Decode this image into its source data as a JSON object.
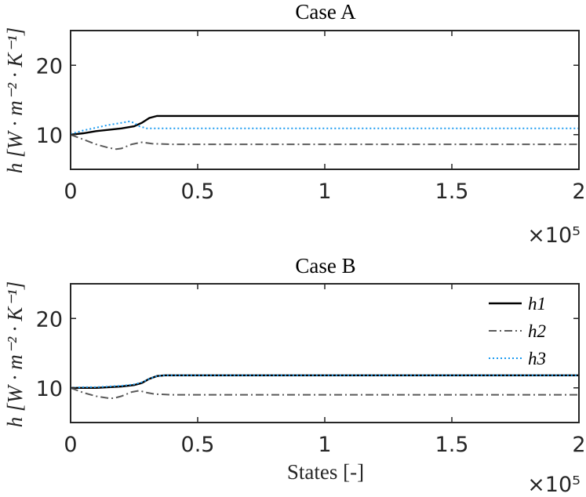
{
  "chart_data": [
    {
      "type": "line",
      "title": "Case A",
      "xlabel": "",
      "ylabel": "h [W · m⁻² · K⁻¹]",
      "xlim": [
        0,
        200000
      ],
      "ylim": [
        5,
        25
      ],
      "xticks": [
        0,
        50000,
        100000,
        150000,
        200000
      ],
      "xtick_labels": [
        "0",
        "0.5",
        "1",
        "1.5",
        "2"
      ],
      "yticks": [
        10,
        20
      ],
      "ytick_labels": [
        "10",
        "20"
      ],
      "x_exponent_label": "×10⁵",
      "grid": false,
      "series": [
        {
          "name": "h1",
          "color": "#000000",
          "style": "solid",
          "x": [
            0,
            5000,
            10000,
            15000,
            20000,
            25000,
            28000,
            31000,
            34000,
            40000,
            60000,
            100000,
            150000,
            200000
          ],
          "y": [
            10.0,
            10.2,
            10.5,
            10.7,
            10.9,
            11.2,
            11.7,
            12.4,
            12.7,
            12.7,
            12.7,
            12.7,
            12.7,
            12.7
          ]
        },
        {
          "name": "h2",
          "color": "#5a5a5a",
          "style": "dashdot",
          "x": [
            0,
            5000,
            10000,
            15000,
            18000,
            20000,
            24000,
            28000,
            32000,
            40000,
            60000,
            100000,
            150000,
            200000
          ],
          "y": [
            10.0,
            9.3,
            8.6,
            8.1,
            7.9,
            8.0,
            8.6,
            8.9,
            8.7,
            8.6,
            8.6,
            8.6,
            8.6,
            8.6
          ]
        },
        {
          "name": "h3",
          "color": "#1a9af0",
          "style": "dotted",
          "x": [
            0,
            5000,
            10000,
            15000,
            20000,
            23000,
            25000,
            27000,
            30000,
            35000,
            60000,
            100000,
            150000,
            200000
          ],
          "y": [
            10.1,
            10.6,
            11.0,
            11.4,
            11.7,
            11.9,
            11.7,
            11.2,
            10.9,
            10.9,
            10.9,
            10.9,
            10.9,
            10.9
          ]
        }
      ]
    },
    {
      "type": "line",
      "title": "Case B",
      "xlabel": "States   [-]",
      "ylabel": "h [W · m⁻² · K⁻¹]",
      "xlim": [
        0,
        200000
      ],
      "ylim": [
        5,
        25
      ],
      "xticks": [
        0,
        50000,
        100000,
        150000,
        200000
      ],
      "xtick_labels": [
        "0",
        "0.5",
        "1",
        "1.5",
        "2"
      ],
      "yticks": [
        10,
        20
      ],
      "ytick_labels": [
        "10",
        "20"
      ],
      "x_exponent_label": "×10⁵",
      "grid": false,
      "legend": {
        "placement": "top-right",
        "entries": [
          "h1",
          "h2",
          "h3"
        ]
      },
      "series": [
        {
          "name": "h1",
          "color": "#000000",
          "style": "solid",
          "x": [
            0,
            5000,
            10000,
            15000,
            20000,
            25000,
            28000,
            31000,
            34000,
            37000,
            60000,
            100000,
            150000,
            200000
          ],
          "y": [
            10.0,
            10.0,
            10.0,
            10.1,
            10.2,
            10.4,
            10.7,
            11.3,
            11.7,
            11.8,
            11.8,
            11.8,
            11.8,
            11.8
          ]
        },
        {
          "name": "h2",
          "color": "#5a5a5a",
          "style": "dashdot",
          "x": [
            0,
            5000,
            10000,
            15000,
            17000,
            20000,
            24000,
            27000,
            30000,
            33000,
            40000,
            100000,
            150000,
            200000
          ],
          "y": [
            10.0,
            9.3,
            8.8,
            8.5,
            8.5,
            8.8,
            9.4,
            9.6,
            9.3,
            9.1,
            9.0,
            9.0,
            9.0,
            9.0
          ]
        },
        {
          "name": "h3",
          "color": "#1a9af0",
          "style": "dotted",
          "x": [
            0,
            5000,
            10000,
            15000,
            20000,
            25000,
            28000,
            31000,
            34000,
            37000,
            60000,
            100000,
            150000,
            200000
          ],
          "y": [
            10.0,
            10.1,
            10.1,
            10.2,
            10.3,
            10.5,
            10.8,
            11.3,
            11.7,
            11.8,
            11.8,
            11.8,
            11.8,
            11.8
          ]
        }
      ]
    }
  ]
}
